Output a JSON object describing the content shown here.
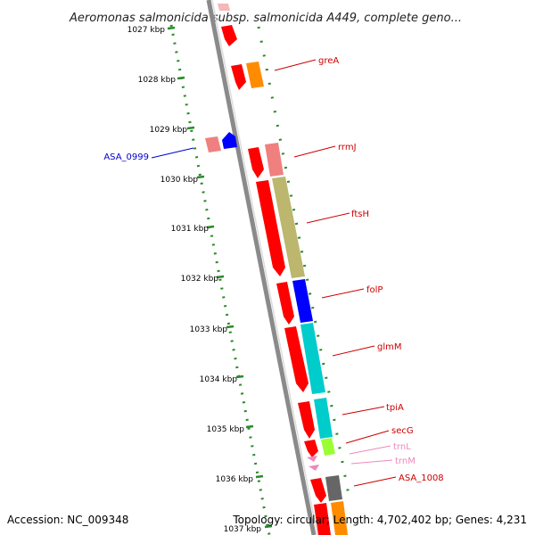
{
  "title": "Aeromonas salmonicida subsp. salmonicida A449, complete geno...",
  "footer": {
    "accession": "Accession: NC_009348",
    "summary": "Topology: circular; Length: 4,702,402 bp; Genes: 4,231"
  },
  "colors": {
    "backbone": "#8a8a8a",
    "tick_dots": "#2a8a2a",
    "label_red": "#cc0000",
    "label_blue": "#0000cc",
    "label_pink": "#ee88bb"
  },
  "ticks": [
    {
      "label": "1027 kbp"
    },
    {
      "label": "1028 kbp"
    },
    {
      "label": "1029 kbp"
    },
    {
      "label": "1030 kbp"
    },
    {
      "label": "1031 kbp"
    },
    {
      "label": "1032 kbp"
    },
    {
      "label": "1033 kbp"
    },
    {
      "label": "1034 kbp"
    },
    {
      "label": "1035 kbp"
    },
    {
      "label": "1036 kbp"
    },
    {
      "label": "1037 kbp"
    }
  ],
  "gene_labels": [
    {
      "text": "greA",
      "color": "#cc0000"
    },
    {
      "text": "ASA_0999",
      "color": "#0000cc"
    },
    {
      "text": "rrmJ",
      "color": "#cc0000"
    },
    {
      "text": "ftsH",
      "color": "#cc0000"
    },
    {
      "text": "folP",
      "color": "#cc0000"
    },
    {
      "text": "glmM",
      "color": "#cc0000"
    },
    {
      "text": "tpiA",
      "color": "#cc0000"
    },
    {
      "text": "secG",
      "color": "#cc0000"
    },
    {
      "text": "trnL",
      "color": "#ee88bb"
    },
    {
      "text": "trnM",
      "color": "#ee88bb"
    },
    {
      "text": "ASA_1008",
      "color": "#cc0000"
    }
  ]
}
